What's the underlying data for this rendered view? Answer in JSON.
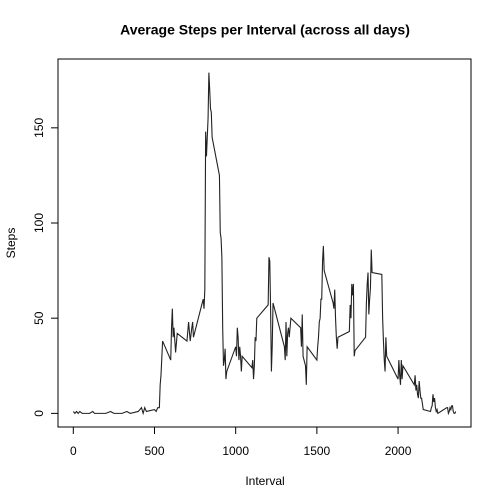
{
  "chart_data": {
    "type": "line",
    "title": "Average Steps per Interval (across all days)",
    "x_label": "Interval",
    "y_label": "Steps",
    "color": "#222222",
    "x": [
      0,
      10,
      20,
      30,
      40,
      55,
      100,
      120,
      130,
      200,
      230,
      250,
      300,
      330,
      350,
      400,
      420,
      430,
      440,
      450,
      500,
      510,
      520,
      530,
      535,
      540,
      550,
      600,
      605,
      610,
      615,
      620,
      630,
      640,
      700,
      710,
      720,
      730,
      735,
      740,
      800,
      805,
      810,
      815,
      820,
      825,
      830,
      835,
      840,
      845,
      850,
      855,
      900,
      905,
      910,
      915,
      920,
      925,
      930,
      935,
      940,
      945,
      1000,
      1005,
      1010,
      1015,
      1020,
      1025,
      1030,
      1035,
      1040,
      1100,
      1105,
      1110,
      1115,
      1120,
      1125,
      1130,
      1200,
      1205,
      1210,
      1215,
      1220,
      1225,
      1230,
      1300,
      1305,
      1310,
      1315,
      1320,
      1325,
      1330,
      1340,
      1400,
      1405,
      1410,
      1415,
      1430,
      1435,
      1440,
      1500,
      1505,
      1510,
      1515,
      1520,
      1525,
      1530,
      1535,
      1540,
      1545,
      1600,
      1605,
      1610,
      1615,
      1620,
      1625,
      1630,
      1700,
      1705,
      1710,
      1715,
      1720,
      1725,
      1730,
      1735,
      1800,
      1805,
      1810,
      1815,
      1820,
      1825,
      1830,
      1835,
      1840,
      1900,
      1905,
      1910,
      1915,
      1920,
      1925,
      1930,
      2000,
      2005,
      2010,
      2015,
      2020,
      2025,
      2030,
      2100,
      2105,
      2110,
      2115,
      2120,
      2125,
      2130,
      2135,
      2140,
      2145,
      2150,
      2155,
      2200,
      2205,
      2210,
      2215,
      2220,
      2225,
      2230,
      2235,
      2240,
      2245,
      2300,
      2305,
      2310,
      2315,
      2320,
      2325,
      2330,
      2335,
      2340,
      2345,
      2350,
      2355
    ],
    "values": [
      1,
      0,
      1,
      0,
      1,
      0,
      0,
      1,
      0,
      0,
      1,
      0,
      0,
      1,
      0,
      1,
      3,
      0,
      3,
      1,
      2,
      1,
      3,
      3,
      15,
      20,
      38,
      28,
      45,
      55,
      40,
      45,
      32,
      42,
      38,
      48,
      38,
      45,
      48,
      40,
      60,
      55,
      65,
      148,
      135,
      145,
      155,
      179,
      170,
      160,
      158,
      145,
      125,
      95,
      92,
      82,
      45,
      25,
      28,
      34,
      18,
      22,
      35,
      30,
      45,
      40,
      28,
      35,
      30,
      22,
      30,
      24,
      28,
      18,
      25,
      40,
      38,
      50,
      57,
      82,
      80,
      55,
      22,
      35,
      58,
      35,
      28,
      48,
      30,
      42,
      45,
      40,
      50,
      45,
      35,
      52,
      30,
      25,
      15,
      35,
      28,
      35,
      40,
      48,
      50,
      60,
      60,
      80,
      88,
      75,
      58,
      55,
      65,
      50,
      40,
      34,
      40,
      43,
      57,
      50,
      68,
      62,
      68,
      30,
      33,
      40,
      58,
      68,
      74,
      52,
      60,
      66,
      86,
      74,
      73,
      50,
      38,
      28,
      22,
      40,
      30,
      18,
      28,
      20,
      15,
      28,
      18,
      25,
      15,
      20,
      12,
      15,
      10,
      8,
      17,
      12,
      8,
      8,
      5,
      2,
      1,
      3,
      4,
      10,
      6,
      8,
      3,
      1,
      2,
      0,
      3,
      3,
      0,
      1,
      3,
      2,
      4,
      4,
      1,
      0,
      0,
      1
    ],
    "xlim": [
      -94.2,
      2449.2
    ],
    "ylim": [
      -7.16,
      186.16
    ],
    "xticks": [
      0,
      500,
      1000,
      1500,
      2000
    ],
    "yticks": [
      0,
      50,
      100,
      150
    ]
  }
}
